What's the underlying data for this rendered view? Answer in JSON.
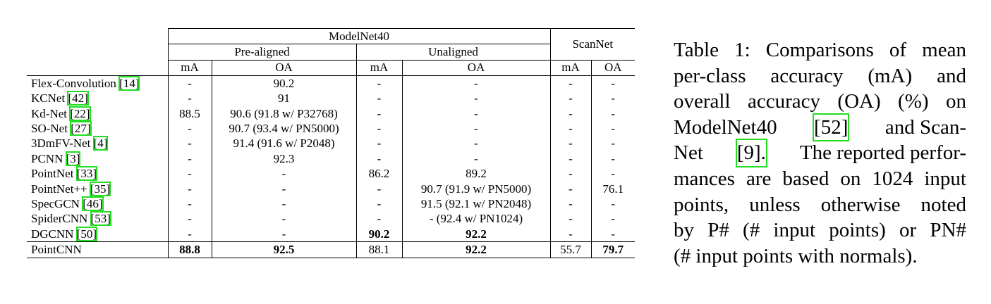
{
  "table": {
    "header": {
      "group1": "ModelNet40",
      "group2": "ScanNet",
      "sub1": "Pre-aligned",
      "sub2": "Unaligned",
      "cols": [
        "mA",
        "OA",
        "mA",
        "OA",
        "mA",
        "OA"
      ]
    },
    "rows": [
      {
        "name": "Flex-Convolution",
        "ref": "[14]",
        "cells": [
          "-",
          "90.2",
          "-",
          "-",
          "-",
          "-"
        ]
      },
      {
        "name": "KCNet",
        "ref": "[42]",
        "cells": [
          "-",
          "91",
          "-",
          "-",
          "-",
          "-"
        ]
      },
      {
        "name": "Kd-Net",
        "ref": "[22]",
        "cells": [
          "88.5",
          "90.6 (91.8 w/ P32768)",
          "-",
          "-",
          "-",
          "-"
        ]
      },
      {
        "name": "SO-Net",
        "ref": "[27]",
        "cells": [
          "-",
          "90.7 (93.4 w/ PN5000)",
          "-",
          "-",
          "-",
          "-"
        ]
      },
      {
        "name": "3DmFV-Net",
        "ref": "[4]",
        "cells": [
          "-",
          "91.4 (91.6 w/ P2048)",
          "-",
          "-",
          "-",
          "-"
        ]
      },
      {
        "name": "PCNN",
        "ref": "[3]",
        "cells": [
          "-",
          "92.3",
          "-",
          "-",
          "-",
          "-"
        ]
      },
      {
        "name": "PointNet",
        "ref": "[33]",
        "cells": [
          "-",
          "-",
          "86.2",
          "89.2",
          "-",
          "-"
        ]
      },
      {
        "name": "PointNet++",
        "ref": "[35]",
        "cells": [
          "-",
          "-",
          "-",
          "90.7 (91.9 w/ PN5000)",
          "-",
          "76.1"
        ]
      },
      {
        "name": "SpecGCN",
        "ref": "[46]",
        "cells": [
          "-",
          "-",
          "-",
          "91.5 (92.1 w/ PN2048)",
          "-",
          "-"
        ]
      },
      {
        "name": "SpiderCNN",
        "ref": "[53]",
        "cells": [
          "-",
          "-",
          "-",
          "- (92.4 w/ PN1024)",
          "-",
          "-"
        ]
      },
      {
        "name": "DGCNN",
        "ref": "[50]",
        "cells": [
          "-",
          "-",
          "90.2",
          "92.2",
          "-",
          "-"
        ]
      },
      {
        "name": "PointCNN",
        "cells": [
          "88.8",
          "92.5",
          "88.1",
          "92.2",
          "55.7",
          "79.7"
        ]
      }
    ]
  },
  "caption": {
    "lines": [
      [
        "Table 1: Comparisons of mean"
      ],
      [
        "per-class accuracy (mA) and"
      ],
      [
        "overall accuracy (OA) (%) on"
      ],
      [
        "ModelNet40",
        "[52]",
        "and Scan-"
      ],
      [
        "Net",
        "[9].",
        "The reported perfor-"
      ],
      [
        "mances are based on 1024 input"
      ],
      [
        "points, unless otherwise noted"
      ],
      [
        "by P# (# input points) or PN#"
      ],
      [
        "(# input points with normals)."
      ]
    ]
  }
}
